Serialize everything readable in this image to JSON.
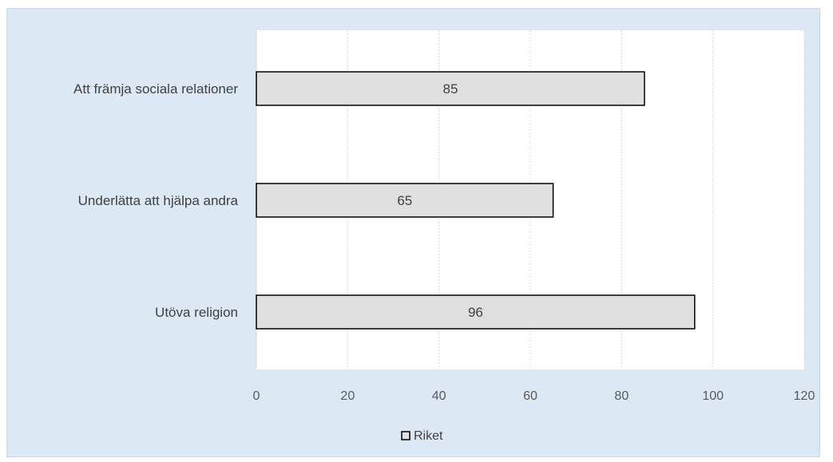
{
  "chart_data": {
    "type": "bar",
    "orientation": "horizontal",
    "categories": [
      "Att främja sociala relationer",
      "Underlätta att hjälpa andra",
      "Utöva religion"
    ],
    "series": [
      {
        "name": "Riket",
        "values": [
          85,
          65,
          96
        ]
      }
    ],
    "xlim": [
      0,
      120
    ],
    "xticks": [
      0,
      20,
      40,
      60,
      80,
      100,
      120
    ],
    "grid": "vertical dotted",
    "legend": "bottom",
    "data_labels": true
  },
  "colors": {
    "background": "#dde8f5",
    "plot_area": "#ffffff",
    "bar_fill": "#e0e0e0",
    "bar_stroke": "#000000",
    "gridline": "#d9d9d9"
  }
}
